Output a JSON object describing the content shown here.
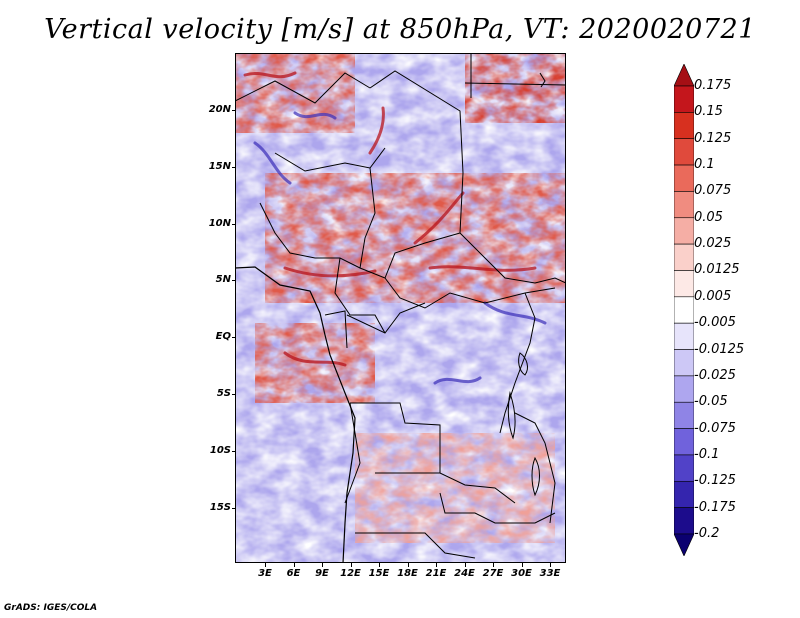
{
  "title": "Vertical velocity [m/s] at 850hPa, VT: 2020020721",
  "footer": "GrADS: IGES/COLA",
  "map": {
    "lat_labels": [
      "20N",
      "15N",
      "10N",
      "5N",
      "EQ",
      "5S",
      "10S",
      "15S"
    ],
    "lon_labels": [
      "3E",
      "6E",
      "9E",
      "12E",
      "15E",
      "18E",
      "21E",
      "24E",
      "27E",
      "30E",
      "33E"
    ]
  },
  "colorbar": {
    "labels": [
      "0.175",
      "0.15",
      "0.125",
      "0.1",
      "0.075",
      "0.05",
      "0.025",
      "0.0125",
      "0.005",
      "-0.005",
      "-0.0125",
      "-0.025",
      "-0.05",
      "-0.075",
      "-0.1",
      "-0.125",
      "-0.175",
      "-0.2"
    ],
    "colors": [
      "#a50f15",
      "#c4161c",
      "#d7301f",
      "#e04a3c",
      "#ea6a5b",
      "#f08c80",
      "#f5aea5",
      "#fad0ca",
      "#fde9e6",
      "#ffffff",
      "#e7e4fb",
      "#cdc8f6",
      "#aea6ef",
      "#8f84e6",
      "#7062dc",
      "#5142c8",
      "#3425ae",
      "#1c0c8c",
      "#0b0070"
    ]
  }
}
